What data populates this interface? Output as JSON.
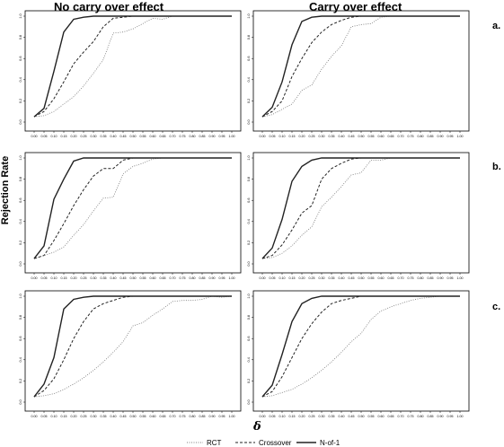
{
  "titles": {
    "left": "No carry over effect",
    "right": "Carry over effect"
  },
  "row_labels": [
    "a.",
    "b.",
    "c."
  ],
  "ylabel": "Rejection Rate",
  "xlabel": "δ",
  "legend": [
    {
      "name": "RCT",
      "dash": "1,1.5",
      "width": 0.8
    },
    {
      "name": "Crossover",
      "dash": "3,2",
      "width": 1
    },
    {
      "name": "N-of-1",
      "dash": "",
      "width": 1.4
    }
  ],
  "colors": {
    "rct": "#777777",
    "crossover": "#222222",
    "nof1": "#222222"
  },
  "chart_data": [
    {
      "type": "line",
      "panel": "a-left",
      "xlim": [
        0,
        1
      ],
      "ylim": [
        0,
        1
      ],
      "x_ticks": [
        "0.00",
        "0.05",
        "0.10",
        "0.15",
        "0.20",
        "0.25",
        "0.30",
        "0.35",
        "0.40",
        "0.45",
        "0.50",
        "0.55",
        "0.60",
        "0.65",
        "0.70",
        "0.75",
        "0.80",
        "0.85",
        "0.90",
        "0.95",
        "1.00"
      ],
      "y_ticks": [
        "0.0",
        "0.2",
        "0.4",
        "0.6",
        "0.8",
        "1.0"
      ],
      "x": [
        0,
        0.05,
        0.1,
        0.15,
        0.2,
        0.25,
        0.3,
        0.35,
        0.4,
        0.45,
        0.5,
        0.55,
        0.6,
        0.65,
        0.7,
        0.75,
        1.0
      ],
      "series": [
        {
          "name": "RCT",
          "values": [
            0.05,
            0.06,
            0.1,
            0.17,
            0.24,
            0.34,
            0.46,
            0.59,
            0.84,
            0.85,
            0.88,
            0.93,
            0.98,
            0.97,
            1.0,
            1.0,
            1.0
          ]
        },
        {
          "name": "Crossover",
          "values": [
            0.05,
            0.1,
            0.22,
            0.38,
            0.55,
            0.66,
            0.76,
            0.9,
            0.98,
            0.99,
            1.0,
            1.0,
            1.0,
            1.0,
            1.0,
            1.0,
            1.0
          ]
        },
        {
          "name": "N-of-1",
          "values": [
            0.05,
            0.13,
            0.48,
            0.85,
            0.97,
            0.99,
            1.0,
            1.0,
            1.0,
            1.0,
            1.0,
            1.0,
            1.0,
            1.0,
            1.0,
            1.0,
            1.0
          ]
        }
      ]
    },
    {
      "type": "line",
      "panel": "a-right",
      "xlim": [
        0,
        1
      ],
      "ylim": [
        0,
        1
      ],
      "x_ticks": [
        "0.00",
        "0.05",
        "0.10",
        "0.15",
        "0.20",
        "0.25",
        "0.30",
        "0.35",
        "0.40",
        "0.45",
        "0.50",
        "0.55",
        "0.60",
        "0.65",
        "0.70",
        "0.75",
        "0.80",
        "0.85",
        "0.90",
        "0.95",
        "1.00"
      ],
      "y_ticks": [
        "0.0",
        "0.2",
        "0.4",
        "0.6",
        "0.8",
        "1.0"
      ],
      "x": [
        0,
        0.05,
        0.1,
        0.15,
        0.2,
        0.25,
        0.3,
        0.35,
        0.4,
        0.45,
        0.5,
        0.55,
        0.6,
        0.65,
        0.7,
        0.75,
        1.0
      ],
      "series": [
        {
          "name": "RCT",
          "values": [
            0.05,
            0.07,
            0.12,
            0.17,
            0.3,
            0.35,
            0.5,
            0.62,
            0.72,
            0.9,
            0.92,
            0.93,
            0.99,
            1.0,
            1.0,
            1.0,
            1.0
          ]
        },
        {
          "name": "Crossover",
          "values": [
            0.05,
            0.1,
            0.2,
            0.43,
            0.6,
            0.75,
            0.85,
            0.92,
            0.96,
            0.99,
            1.0,
            1.0,
            1.0,
            1.0,
            1.0,
            1.0,
            1.0
          ]
        },
        {
          "name": "N-of-1",
          "values": [
            0.05,
            0.14,
            0.38,
            0.73,
            0.95,
            0.99,
            1.0,
            1.0,
            1.0,
            1.0,
            1.0,
            1.0,
            1.0,
            1.0,
            1.0,
            1.0,
            1.0
          ]
        }
      ]
    },
    {
      "type": "line",
      "panel": "b-left",
      "xlim": [
        0,
        1
      ],
      "ylim": [
        0,
        1
      ],
      "x_ticks": [
        "0.00",
        "0.05",
        "0.10",
        "0.15",
        "0.20",
        "0.25",
        "0.30",
        "0.35",
        "0.40",
        "0.45",
        "0.50",
        "0.55",
        "0.60",
        "0.65",
        "0.70",
        "0.75",
        "0.80",
        "0.85",
        "0.90",
        "0.95",
        "1.00"
      ],
      "y_ticks": [
        "0.0",
        "0.2",
        "0.4",
        "0.6",
        "0.8",
        "1.0"
      ],
      "x": [
        0,
        0.05,
        0.1,
        0.15,
        0.2,
        0.25,
        0.3,
        0.35,
        0.4,
        0.45,
        0.5,
        0.55,
        0.6,
        0.65,
        0.7,
        0.75,
        1.0
      ],
      "series": [
        {
          "name": "RCT",
          "values": [
            0.05,
            0.08,
            0.11,
            0.16,
            0.27,
            0.37,
            0.5,
            0.62,
            0.63,
            0.85,
            0.92,
            0.95,
            0.99,
            1.0,
            1.0,
            1.0,
            1.0
          ]
        },
        {
          "name": "Crossover",
          "values": [
            0.05,
            0.08,
            0.22,
            0.38,
            0.55,
            0.7,
            0.83,
            0.9,
            0.9,
            0.98,
            1.0,
            1.0,
            1.0,
            1.0,
            1.0,
            1.0,
            1.0
          ]
        },
        {
          "name": "N-of-1",
          "values": [
            0.05,
            0.17,
            0.61,
            0.8,
            0.97,
            1.0,
            1.0,
            1.0,
            1.0,
            1.0,
            1.0,
            1.0,
            1.0,
            1.0,
            1.0,
            1.0,
            1.0
          ]
        }
      ]
    },
    {
      "type": "line",
      "panel": "b-right",
      "xlim": [
        0,
        1
      ],
      "ylim": [
        0,
        1
      ],
      "x_ticks": [
        "0.00",
        "0.05",
        "0.10",
        "0.15",
        "0.20",
        "0.25",
        "0.30",
        "0.35",
        "0.40",
        "0.45",
        "0.50",
        "0.55",
        "0.60",
        "0.65",
        "0.70",
        "0.75",
        "0.80",
        "0.85",
        "0.90",
        "0.95",
        "1.00"
      ],
      "y_ticks": [
        "0.0",
        "0.2",
        "0.4",
        "0.6",
        "0.8",
        "1.0"
      ],
      "x": [
        0,
        0.05,
        0.1,
        0.15,
        0.2,
        0.25,
        0.3,
        0.35,
        0.4,
        0.45,
        0.5,
        0.55,
        0.6,
        0.65,
        0.7,
        0.75,
        1.0
      ],
      "series": [
        {
          "name": "RCT",
          "values": [
            0.05,
            0.06,
            0.1,
            0.17,
            0.27,
            0.35,
            0.54,
            0.63,
            0.73,
            0.84,
            0.86,
            0.98,
            0.98,
            1.0,
            1.0,
            1.0,
            1.0
          ]
        },
        {
          "name": "Crossover",
          "values": [
            0.05,
            0.08,
            0.18,
            0.32,
            0.48,
            0.55,
            0.8,
            0.9,
            0.95,
            0.99,
            1.0,
            1.0,
            1.0,
            1.0,
            1.0,
            1.0,
            1.0
          ]
        },
        {
          "name": "N-of-1",
          "values": [
            0.05,
            0.15,
            0.42,
            0.78,
            0.92,
            0.98,
            1.0,
            1.0,
            1.0,
            1.0,
            1.0,
            1.0,
            1.0,
            1.0,
            1.0,
            1.0,
            1.0
          ]
        }
      ]
    },
    {
      "type": "line",
      "panel": "c-left",
      "xlim": [
        0,
        1
      ],
      "ylim": [
        0,
        1
      ],
      "x_ticks": [
        "0.00",
        "0.05",
        "0.10",
        "0.15",
        "0.20",
        "0.25",
        "0.30",
        "0.35",
        "0.40",
        "0.45",
        "0.50",
        "0.55",
        "0.60",
        "0.65",
        "0.70",
        "0.75",
        "0.80",
        "0.85",
        "0.90",
        "0.95",
        "1.00"
      ],
      "y_ticks": [
        "0.0",
        "0.2",
        "0.4",
        "0.6",
        "0.8",
        "1.0"
      ],
      "x": [
        0,
        0.05,
        0.1,
        0.15,
        0.2,
        0.25,
        0.3,
        0.35,
        0.4,
        0.45,
        0.5,
        0.55,
        0.6,
        0.65,
        0.7,
        0.75,
        0.8,
        0.85,
        0.9,
        0.95,
        1.0
      ],
      "series": [
        {
          "name": "RCT",
          "values": [
            0.05,
            0.06,
            0.08,
            0.12,
            0.17,
            0.23,
            0.3,
            0.38,
            0.47,
            0.57,
            0.72,
            0.75,
            0.82,
            0.88,
            0.95,
            0.96,
            0.96,
            0.97,
            1.0,
            0.99,
            1.0
          ]
        },
        {
          "name": "Crossover",
          "values": [
            0.05,
            0.11,
            0.22,
            0.4,
            0.6,
            0.76,
            0.88,
            0.93,
            0.96,
            0.99,
            1.0,
            1.0,
            1.0,
            1.0,
            1.0,
            1.0,
            1.0,
            1.0,
            1.0,
            1.0,
            1.0
          ]
        },
        {
          "name": "N-of-1",
          "values": [
            0.05,
            0.17,
            0.42,
            0.88,
            0.97,
            0.99,
            1.0,
            1.0,
            1.0,
            1.0,
            1.0,
            1.0,
            1.0,
            1.0,
            1.0,
            1.0,
            1.0,
            1.0,
            1.0,
            1.0,
            1.0
          ]
        }
      ]
    },
    {
      "type": "line",
      "panel": "c-right",
      "xlim": [
        0,
        1
      ],
      "ylim": [
        0,
        1
      ],
      "x_ticks": [
        "0.00",
        "0.05",
        "0.10",
        "0.15",
        "0.20",
        "0.25",
        "0.30",
        "0.35",
        "0.40",
        "0.45",
        "0.50",
        "0.55",
        "0.60",
        "0.65",
        "0.70",
        "0.75",
        "0.80",
        "0.85",
        "0.90",
        "0.95",
        "1.00"
      ],
      "y_ticks": [
        "0.0",
        "0.2",
        "0.4",
        "0.6",
        "0.8",
        "1.0"
      ],
      "x": [
        0,
        0.05,
        0.1,
        0.15,
        0.2,
        0.25,
        0.3,
        0.35,
        0.4,
        0.45,
        0.5,
        0.55,
        0.6,
        0.65,
        0.7,
        0.75,
        0.8,
        0.85,
        0.9,
        0.95,
        1.0
      ],
      "series": [
        {
          "name": "RCT",
          "values": [
            0.05,
            0.06,
            0.09,
            0.12,
            0.17,
            0.23,
            0.3,
            0.38,
            0.47,
            0.57,
            0.65,
            0.78,
            0.86,
            0.9,
            0.93,
            0.96,
            0.98,
            0.99,
            1.0,
            1.0,
            1.0
          ]
        },
        {
          "name": "Crossover",
          "values": [
            0.05,
            0.1,
            0.24,
            0.42,
            0.6,
            0.74,
            0.85,
            0.93,
            0.96,
            0.98,
            1.0,
            1.0,
            1.0,
            1.0,
            1.0,
            1.0,
            1.0,
            1.0,
            1.0,
            1.0,
            1.0
          ]
        },
        {
          "name": "N-of-1",
          "values": [
            0.05,
            0.16,
            0.45,
            0.76,
            0.93,
            0.98,
            1.0,
            1.0,
            1.0,
            1.0,
            1.0,
            1.0,
            1.0,
            1.0,
            1.0,
            1.0,
            1.0,
            1.0,
            1.0,
            1.0,
            1.0
          ]
        }
      ]
    }
  ]
}
